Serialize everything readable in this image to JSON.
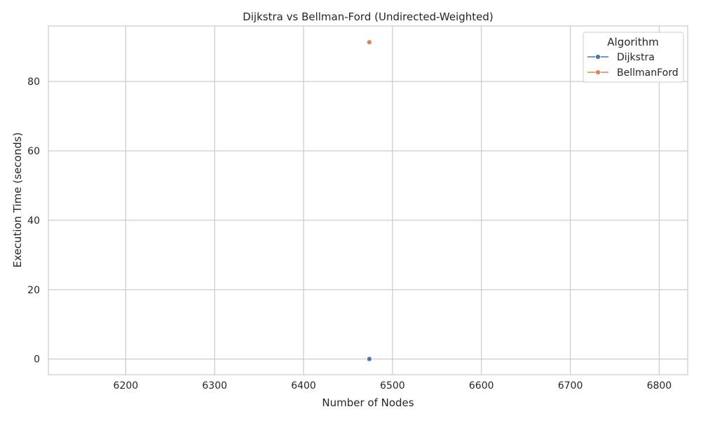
{
  "chart_data": {
    "type": "line",
    "title": "Dijkstra vs Bellman-Ford (Undirected-Weighted)",
    "xlabel": "Number of Nodes",
    "ylabel": "Execution Time (seconds)",
    "xlim": [
      6113,
      6832
    ],
    "ylim": [
      -4.5,
      96
    ],
    "xticks": [
      6200,
      6300,
      6400,
      6500,
      6600,
      6700,
      6800
    ],
    "yticks": [
      0,
      20,
      40,
      60,
      80
    ],
    "grid": true,
    "legend": {
      "title": "Algorithm",
      "placement": "top-right"
    },
    "series": [
      {
        "name": "Dijkstra",
        "color": "#4c72b0",
        "x": [
          6474
        ],
        "y": [
          0.02
        ]
      },
      {
        "name": "BellmanFord",
        "color": "#dd8452",
        "x": [
          6474
        ],
        "y": [
          91.3
        ]
      }
    ]
  }
}
